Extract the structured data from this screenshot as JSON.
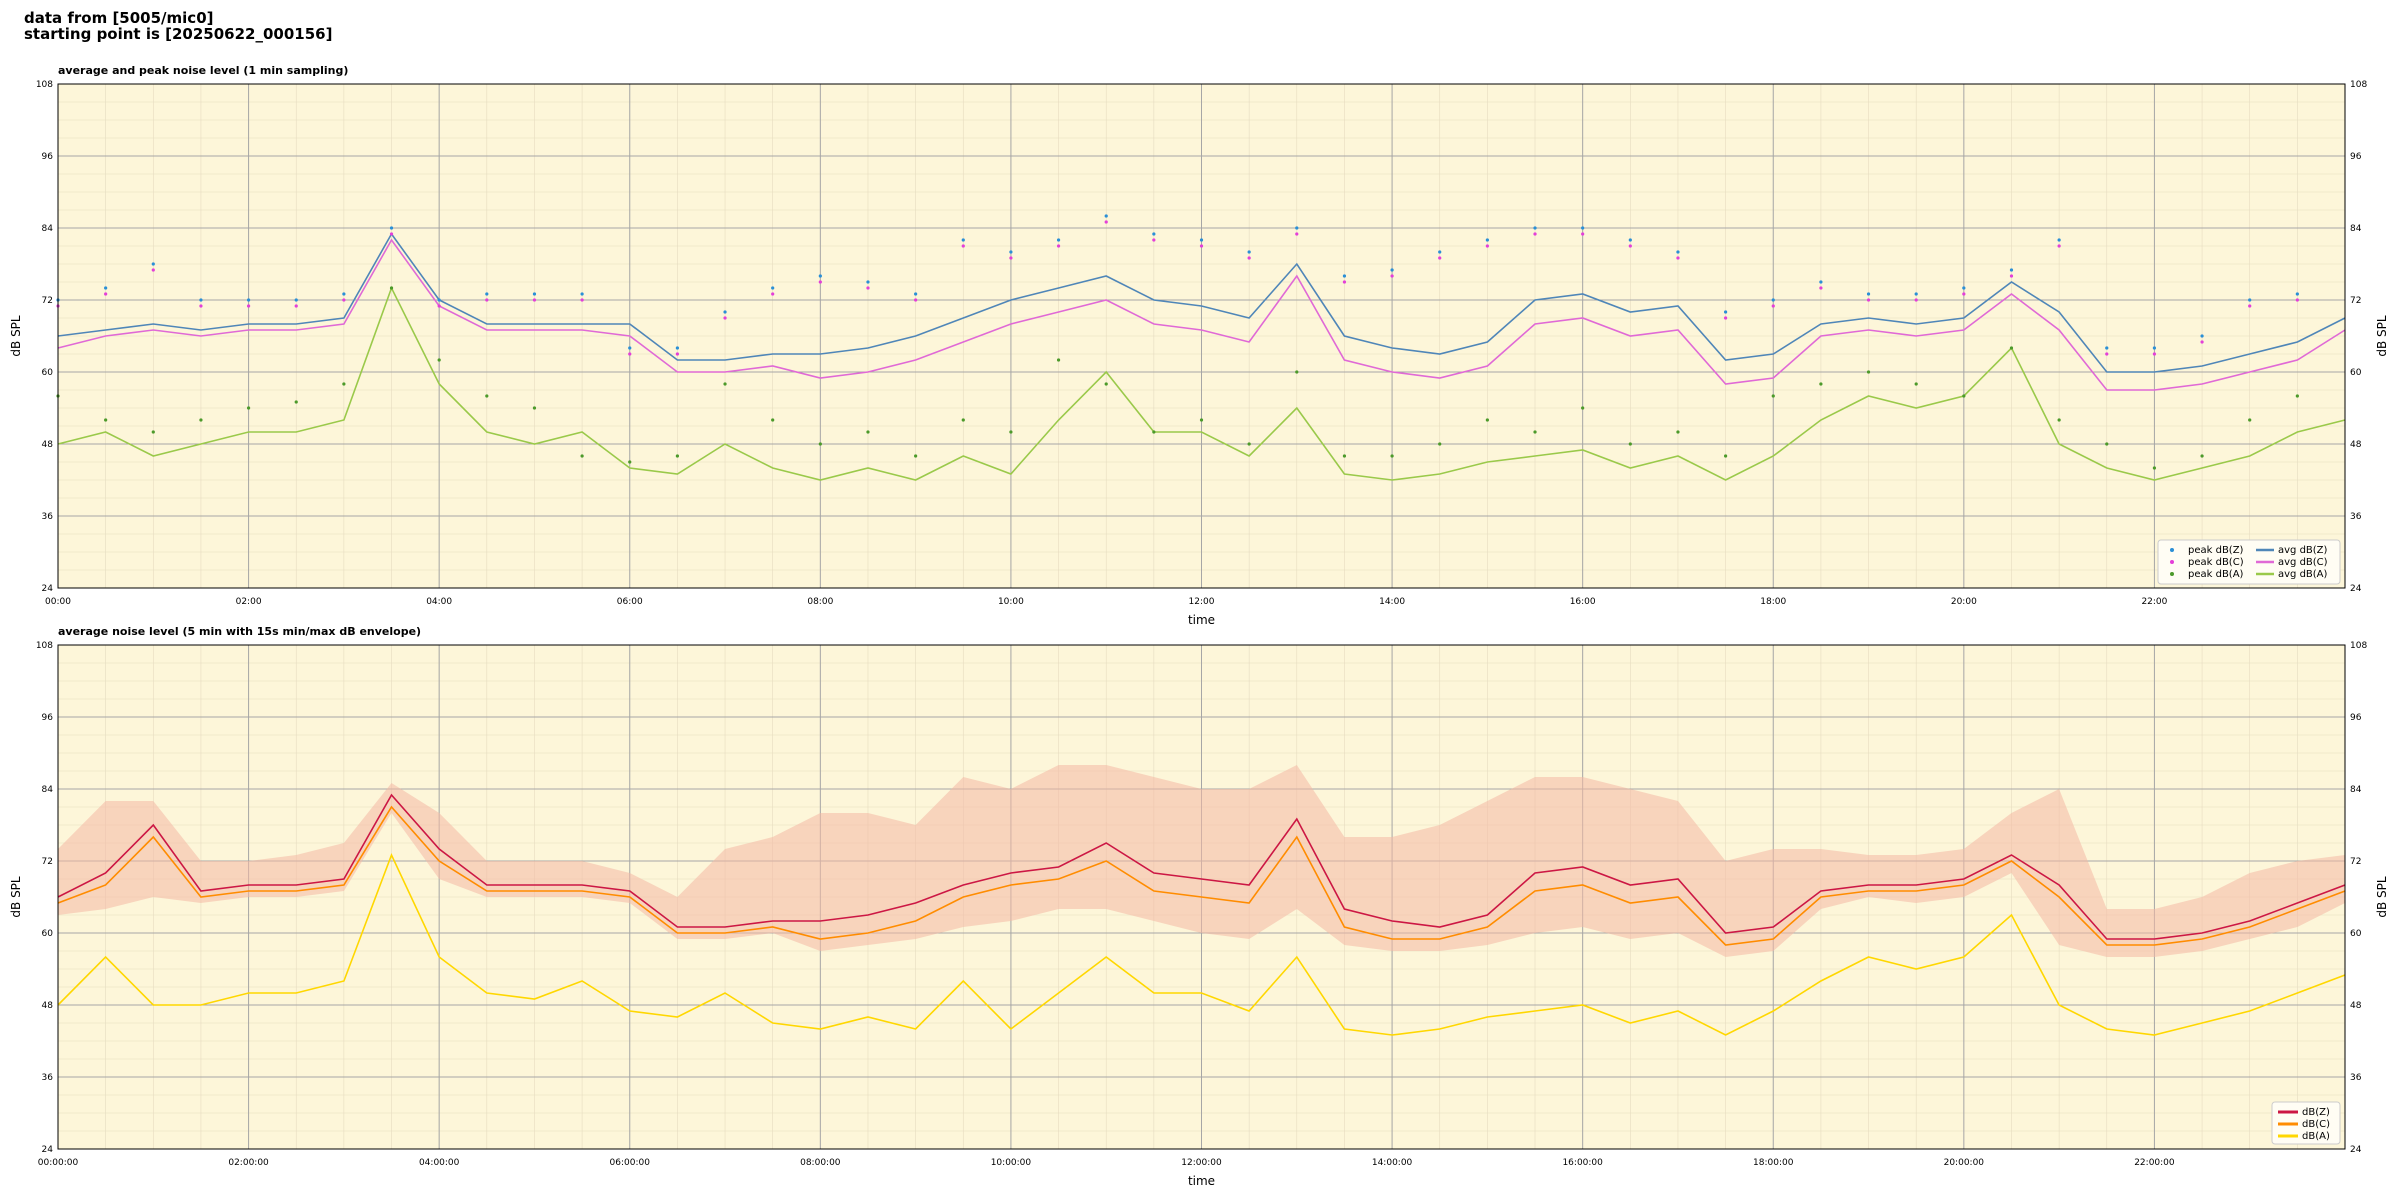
{
  "header": {
    "line1": "data from [5005/mic0]",
    "line2": "starting point is [20250622_000156]"
  },
  "colors": {
    "background": "#fdf6d9",
    "peak_z": "#2a8fd6",
    "peak_c": "#e43fd8",
    "peak_a": "#4c9a2a",
    "avg_z": "#4f86b8",
    "avg_c": "#e069d6",
    "avg_a": "#9ac94a",
    "dbz": "#cc1744",
    "dbc": "#ff8c00",
    "dba": "#ffd700",
    "envelope": "#f4b8a4"
  },
  "chart_data": [
    {
      "type": "line",
      "title": "average and peak noise level (1 min sampling)",
      "xlabel": "time",
      "ylabel": "dB SPL",
      "x_unit": "hours since 00:00",
      "xlim": [
        0,
        24
      ],
      "ylim": [
        24,
        108
      ],
      "y_ticks": [
        24,
        36,
        48,
        60,
        72,
        84,
        96,
        108
      ],
      "x_ticks": [
        "00:00",
        "02:00",
        "04:00",
        "06:00",
        "08:00",
        "10:00",
        "12:00",
        "14:00",
        "16:00",
        "18:00",
        "20:00",
        "22:00"
      ],
      "grid": true,
      "legend_position": "lower-right",
      "series": [
        {
          "name": "peak dB(Z)",
          "style": "points",
          "x": [
            0,
            0.5,
            1,
            1.5,
            2,
            2.5,
            3,
            3.5,
            4,
            4.5,
            5,
            5.5,
            6,
            6.5,
            7,
            7.5,
            8,
            8.5,
            9,
            9.5,
            10,
            10.5,
            11,
            11.5,
            12,
            12.5,
            13,
            13.5,
            14,
            14.5,
            15,
            15.5,
            16,
            16.5,
            17,
            17.5,
            18,
            18.5,
            19,
            19.5,
            20,
            20.5,
            21,
            21.5,
            22,
            22.5,
            23,
            23.5
          ],
          "values": [
            72,
            74,
            78,
            72,
            72,
            72,
            73,
            84,
            72,
            73,
            73,
            73,
            64,
            64,
            70,
            74,
            76,
            75,
            73,
            82,
            80,
            82,
            86,
            83,
            82,
            80,
            84,
            76,
            77,
            80,
            82,
            84,
            84,
            82,
            80,
            70,
            72,
            75,
            73,
            73,
            74,
            77,
            82,
            64,
            64,
            66,
            72,
            73
          ]
        },
        {
          "name": "peak dB(C)",
          "style": "points",
          "x": [
            0,
            0.5,
            1,
            1.5,
            2,
            2.5,
            3,
            3.5,
            4,
            4.5,
            5,
            5.5,
            6,
            6.5,
            7,
            7.5,
            8,
            8.5,
            9,
            9.5,
            10,
            10.5,
            11,
            11.5,
            12,
            12.5,
            13,
            13.5,
            14,
            14.5,
            15,
            15.5,
            16,
            16.5,
            17,
            17.5,
            18,
            18.5,
            19,
            19.5,
            20,
            20.5,
            21,
            21.5,
            22,
            22.5,
            23,
            23.5
          ],
          "values": [
            71,
            73,
            77,
            71,
            71,
            71,
            72,
            83,
            71,
            72,
            72,
            72,
            63,
            63,
            69,
            73,
            75,
            74,
            72,
            81,
            79,
            81,
            85,
            82,
            81,
            79,
            83,
            75,
            76,
            79,
            81,
            83,
            83,
            81,
            79,
            69,
            71,
            74,
            72,
            72,
            73,
            76,
            81,
            63,
            63,
            65,
            71,
            72
          ]
        },
        {
          "name": "peak dB(A)",
          "style": "points",
          "x": [
            0,
            0.5,
            1,
            1.5,
            2,
            2.5,
            3,
            3.5,
            4,
            4.5,
            5,
            5.5,
            6,
            6.5,
            7,
            7.5,
            8,
            8.5,
            9,
            9.5,
            10,
            10.5,
            11,
            11.5,
            12,
            12.5,
            13,
            13.5,
            14,
            14.5,
            15,
            15.5,
            16,
            16.5,
            17,
            17.5,
            18,
            18.5,
            19,
            19.5,
            20,
            20.5,
            21,
            21.5,
            22,
            22.5,
            23,
            23.5
          ],
          "values": [
            56,
            52,
            50,
            52,
            54,
            55,
            58,
            74,
            62,
            56,
            54,
            46,
            45,
            46,
            58,
            52,
            48,
            50,
            46,
            52,
            50,
            62,
            58,
            50,
            52,
            48,
            60,
            46,
            46,
            48,
            52,
            50,
            54,
            48,
            50,
            46,
            56,
            58,
            60,
            58,
            56,
            64,
            52,
            48,
            44,
            46,
            52,
            56
          ]
        },
        {
          "name": "avg dB(Z)",
          "x": [
            0,
            0.5,
            1,
            1.5,
            2,
            2.5,
            3,
            3.5,
            4,
            4.5,
            5,
            5.5,
            6,
            6.5,
            7,
            7.5,
            8,
            8.5,
            9,
            9.5,
            10,
            10.5,
            11,
            11.5,
            12,
            12.5,
            13,
            13.5,
            14,
            14.5,
            15,
            15.5,
            16,
            16.5,
            17,
            17.5,
            18,
            18.5,
            19,
            19.5,
            20,
            20.5,
            21,
            21.5,
            22,
            22.5,
            23,
            23.5,
            24
          ],
          "values": [
            66,
            67,
            68,
            67,
            68,
            68,
            69,
            83,
            72,
            68,
            68,
            68,
            68,
            62,
            62,
            63,
            63,
            64,
            66,
            69,
            72,
            74,
            76,
            72,
            71,
            69,
            78,
            66,
            64,
            63,
            65,
            72,
            73,
            70,
            71,
            62,
            63,
            68,
            69,
            68,
            69,
            75,
            70,
            60,
            60,
            61,
            63,
            65,
            69
          ]
        },
        {
          "name": "avg dB(C)",
          "x": [
            0,
            0.5,
            1,
            1.5,
            2,
            2.5,
            3,
            3.5,
            4,
            4.5,
            5,
            5.5,
            6,
            6.5,
            7,
            7.5,
            8,
            8.5,
            9,
            9.5,
            10,
            10.5,
            11,
            11.5,
            12,
            12.5,
            13,
            13.5,
            14,
            14.5,
            15,
            15.5,
            16,
            16.5,
            17,
            17.5,
            18,
            18.5,
            19,
            19.5,
            20,
            20.5,
            21,
            21.5,
            22,
            22.5,
            23,
            23.5,
            24
          ],
          "values": [
            64,
            66,
            67,
            66,
            67,
            67,
            68,
            82,
            71,
            67,
            67,
            67,
            66,
            60,
            60,
            61,
            59,
            60,
            62,
            65,
            68,
            70,
            72,
            68,
            67,
            65,
            76,
            62,
            60,
            59,
            61,
            68,
            69,
            66,
            67,
            58,
            59,
            66,
            67,
            66,
            67,
            73,
            67,
            57,
            57,
            58,
            60,
            62,
            67
          ]
        },
        {
          "name": "avg dB(A)",
          "x": [
            0,
            0.5,
            1,
            1.5,
            2,
            2.5,
            3,
            3.5,
            4,
            4.5,
            5,
            5.5,
            6,
            6.5,
            7,
            7.5,
            8,
            8.5,
            9,
            9.5,
            10,
            10.5,
            11,
            11.5,
            12,
            12.5,
            13,
            13.5,
            14,
            14.5,
            15,
            15.5,
            16,
            16.5,
            17,
            17.5,
            18,
            18.5,
            19,
            19.5,
            20,
            20.5,
            21,
            21.5,
            22,
            22.5,
            23,
            23.5,
            24
          ],
          "values": [
            48,
            50,
            46,
            48,
            50,
            50,
            52,
            74,
            58,
            50,
            48,
            50,
            44,
            43,
            48,
            44,
            42,
            44,
            42,
            46,
            43,
            52,
            60,
            50,
            50,
            46,
            54,
            43,
            42,
            43,
            45,
            46,
            47,
            44,
            46,
            42,
            46,
            52,
            56,
            54,
            56,
            64,
            48,
            44,
            42,
            44,
            46,
            50,
            52
          ]
        }
      ]
    },
    {
      "type": "line",
      "title": "average noise level (5 min with 15s min/max dB envelope)",
      "xlabel": "time",
      "ylabel": "dB SPL",
      "x_unit": "hours since 00:00:00",
      "xlim": [
        0,
        24
      ],
      "ylim": [
        24,
        108
      ],
      "y_ticks": [
        24,
        36,
        48,
        60,
        72,
        84,
        96,
        108
      ],
      "x_ticks": [
        "00:00:00",
        "02:00:00",
        "04:00:00",
        "06:00:00",
        "08:00:00",
        "10:00:00",
        "12:00:00",
        "14:00:00",
        "16:00:00",
        "18:00:00",
        "20:00:00",
        "22:00:00"
      ],
      "grid": true,
      "legend_position": "lower-right",
      "envelope": {
        "x": [
          0,
          0.5,
          1,
          1.5,
          2,
          2.5,
          3,
          3.5,
          4,
          4.5,
          5,
          5.5,
          6,
          6.5,
          7,
          7.5,
          8,
          8.5,
          9,
          9.5,
          10,
          10.5,
          11,
          11.5,
          12,
          12.5,
          13,
          13.5,
          14,
          14.5,
          15,
          15.5,
          16,
          16.5,
          17,
          17.5,
          18,
          18.5,
          19,
          19.5,
          20,
          20.5,
          21,
          21.5,
          22,
          22.5,
          23,
          23.5,
          24
        ],
        "max": [
          74,
          82,
          82,
          72,
          72,
          73,
          75,
          85,
          80,
          72,
          72,
          72,
          70,
          66,
          74,
          76,
          80,
          80,
          78,
          86,
          84,
          88,
          88,
          86,
          84,
          84,
          88,
          76,
          76,
          78,
          82,
          86,
          86,
          84,
          82,
          72,
          74,
          74,
          73,
          73,
          74,
          80,
          84,
          64,
          64,
          66,
          70,
          72,
          73
        ],
        "min": [
          63,
          64,
          66,
          65,
          66,
          66,
          67,
          80,
          69,
          66,
          66,
          66,
          65,
          59,
          59,
          60,
          57,
          58,
          59,
          61,
          62,
          64,
          64,
          62,
          60,
          59,
          64,
          58,
          57,
          57,
          58,
          60,
          61,
          59,
          60,
          56,
          57,
          64,
          66,
          65,
          66,
          70,
          58,
          56,
          56,
          57,
          59,
          61,
          65
        ]
      },
      "series": [
        {
          "name": "dB(Z)",
          "x": [
            0,
            0.5,
            1,
            1.5,
            2,
            2.5,
            3,
            3.5,
            4,
            4.5,
            5,
            5.5,
            6,
            6.5,
            7,
            7.5,
            8,
            8.5,
            9,
            9.5,
            10,
            10.5,
            11,
            11.5,
            12,
            12.5,
            13,
            13.5,
            14,
            14.5,
            15,
            15.5,
            16,
            16.5,
            17,
            17.5,
            18,
            18.5,
            19,
            19.5,
            20,
            20.5,
            21,
            21.5,
            22,
            22.5,
            23,
            23.5,
            24
          ],
          "values": [
            66,
            70,
            78,
            67,
            68,
            68,
            69,
            83,
            74,
            68,
            68,
            68,
            67,
            61,
            61,
            62,
            62,
            63,
            65,
            68,
            70,
            71,
            75,
            70,
            69,
            68,
            79,
            64,
            62,
            61,
            63,
            70,
            71,
            68,
            69,
            60,
            61,
            67,
            68,
            68,
            69,
            73,
            68,
            59,
            59,
            60,
            62,
            65,
            68
          ]
        },
        {
          "name": "dB(C)",
          "x": [
            0,
            0.5,
            1,
            1.5,
            2,
            2.5,
            3,
            3.5,
            4,
            4.5,
            5,
            5.5,
            6,
            6.5,
            7,
            7.5,
            8,
            8.5,
            9,
            9.5,
            10,
            10.5,
            11,
            11.5,
            12,
            12.5,
            13,
            13.5,
            14,
            14.5,
            15,
            15.5,
            16,
            16.5,
            17,
            17.5,
            18,
            18.5,
            19,
            19.5,
            20,
            20.5,
            21,
            21.5,
            22,
            22.5,
            23,
            23.5,
            24
          ],
          "values": [
            65,
            68,
            76,
            66,
            67,
            67,
            68,
            81,
            72,
            67,
            67,
            67,
            66,
            60,
            60,
            61,
            59,
            60,
            62,
            66,
            68,
            69,
            72,
            67,
            66,
            65,
            76,
            61,
            59,
            59,
            61,
            67,
            68,
            65,
            66,
            58,
            59,
            66,
            67,
            67,
            68,
            72,
            66,
            58,
            58,
            59,
            61,
            64,
            67
          ]
        },
        {
          "name": "dB(A)",
          "x": [
            0,
            0.5,
            1,
            1.5,
            2,
            2.5,
            3,
            3.5,
            4,
            4.5,
            5,
            5.5,
            6,
            6.5,
            7,
            7.5,
            8,
            8.5,
            9,
            9.5,
            10,
            10.5,
            11,
            11.5,
            12,
            12.5,
            13,
            13.5,
            14,
            14.5,
            15,
            15.5,
            16,
            16.5,
            17,
            17.5,
            18,
            18.5,
            19,
            19.5,
            20,
            20.5,
            21,
            21.5,
            22,
            22.5,
            23,
            23.5,
            24
          ],
          "values": [
            48,
            56,
            48,
            48,
            50,
            50,
            52,
            73,
            56,
            50,
            49,
            52,
            47,
            46,
            50,
            45,
            44,
            46,
            44,
            52,
            44,
            50,
            56,
            50,
            50,
            47,
            56,
            44,
            43,
            44,
            46,
            47,
            48,
            45,
            47,
            43,
            47,
            52,
            56,
            54,
            56,
            63,
            48,
            44,
            43,
            45,
            47,
            50,
            53
          ]
        }
      ]
    }
  ]
}
